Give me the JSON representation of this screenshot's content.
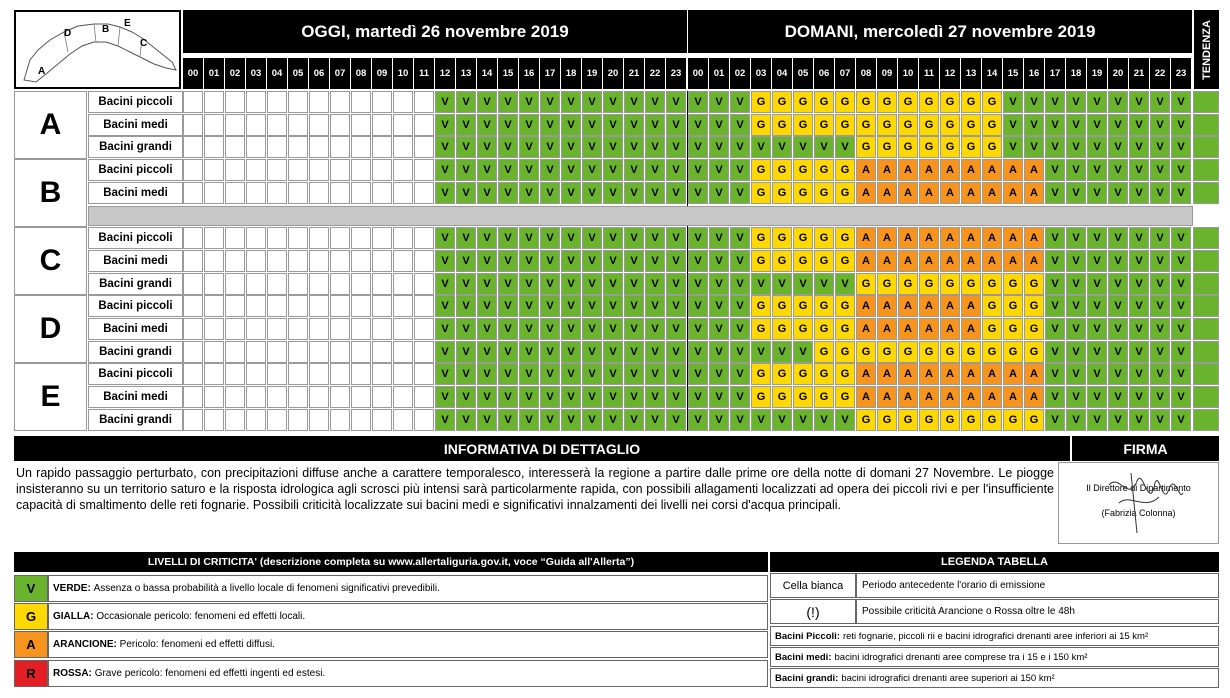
{
  "header": {
    "today": "OGGI, martedì 26 novembre 2019",
    "tomorrow": "DOMANI, mercoledì 27 novembre 2019",
    "trend": "TENDENZA",
    "map_labels": [
      "A",
      "B",
      "C",
      "D",
      "E"
    ]
  },
  "hours": [
    "00",
    "01",
    "02",
    "03",
    "04",
    "05",
    "06",
    "07",
    "08",
    "09",
    "10",
    "11",
    "12",
    "13",
    "14",
    "15",
    "16",
    "17",
    "18",
    "19",
    "20",
    "21",
    "22",
    "23",
    "00",
    "01",
    "02",
    "03",
    "04",
    "05",
    "06",
    "07",
    "08",
    "09",
    "10",
    "11",
    "12",
    "13",
    "14",
    "15",
    "16",
    "17",
    "18",
    "19",
    "20",
    "21",
    "22",
    "23"
  ],
  "zones": [
    {
      "name": "A",
      "rows": [
        {
          "label": "Bacini piccoli",
          "today": "wwwwwwwwwwwwVVVVVVVVVVVV",
          "tomorrow": "VVVGGGGGGGGGGGGVVVVVVVVV"
        },
        {
          "label": "Bacini medi",
          "today": "wwwwwwwwwwwwVVVVVVVVVVVV",
          "tomorrow": "VVVGGGGGGGGGGGGVVVVVVVVV"
        },
        {
          "label": "Bacini grandi",
          "today": "wwwwwwwwwwwwVVVVVVVVVVVV",
          "tomorrow": "VVVVVVVVGGGGGGGVVVVVVVVV"
        }
      ]
    },
    {
      "name": "B",
      "rows": [
        {
          "label": "Bacini piccoli",
          "today": "wwwwwwwwwwwwVVVVVVVVVVVV",
          "tomorrow": "VVVGGGGGAAAAAAAAAVVVVVVV"
        },
        {
          "label": "Bacini medi",
          "today": "wwwwwwwwwwwwVVVVVVVVVVVV",
          "tomorrow": "VVVGGGGGAAAAAAAAAVVVVVVV"
        }
      ]
    },
    {
      "name": "C",
      "rows": [
        {
          "label": "Bacini piccoli",
          "today": "wwwwwwwwwwwwVVVVVVVVVVVV",
          "tomorrow": "VVVGGGGGAAAAAAAAAVVVVVVV"
        },
        {
          "label": "Bacini medi",
          "today": "wwwwwwwwwwwwVVVVVVVVVVVV",
          "tomorrow": "VVVGGGGGAAAAAAAAAVVVVVVV"
        },
        {
          "label": "Bacini grandi",
          "today": "wwwwwwwwwwwwVVVVVVVVVVVV",
          "tomorrow": "VVVVVVVVGGGGGGGGGVVVVVVV"
        }
      ]
    },
    {
      "name": "D",
      "rows": [
        {
          "label": "Bacini piccoli",
          "today": "wwwwwwwwwwwwVVVVVVVVVVVV",
          "tomorrow": "VVVGGGGGAAAAAAGGGVVVVVVV"
        },
        {
          "label": "Bacini medi",
          "today": "wwwwwwwwwwwwVVVVVVVVVVVV",
          "tomorrow": "VVVGGGGGAAAAAAGGGVVVVVVV"
        },
        {
          "label": "Bacini grandi",
          "today": "wwwwwwwwwwwwVVVVVVVVVVVV",
          "tomorrow": "VVVVVVGGGGGGGGGGGVVVVVVV"
        }
      ]
    },
    {
      "name": "E",
      "rows": [
        {
          "label": "Bacini piccoli",
          "today": "wwwwwwwwwwwwVVVVVVVVVVVV",
          "tomorrow": "VVVGGGGGAAAAAAAAAVVVVVVV"
        },
        {
          "label": "Bacini medi",
          "today": "wwwwwwwwwwwwVVVVVVVVVVVV",
          "tomorrow": "VVVGGGGGAAAAAAAAAVVVVVVV"
        },
        {
          "label": "Bacini grandi",
          "today": "wwwwwwwwwwwwVVVVVVVVVVVV",
          "tomorrow": "VVVVVVVVGGGGGGGGGVVVVVVV"
        }
      ]
    }
  ],
  "colors": {
    "V": "#6ab42d",
    "G": "#ffd800",
    "A": "#f7941d",
    "R": "#e31e24"
  },
  "info": {
    "title": "INFORMATIVA DI DETTAGLIO",
    "text": "Un rapido passaggio perturbato, con precipitazioni diffuse anche a carattere temporalesco, interesserà la regione a partire dalle prime ore della notte di domani 27 Novembre. Le piogge insisteranno su un territorio saturo e la risposta idrologica agli scrosci più intensi sarà particolarmente rapida, con possibili allagamenti localizzati ad opera dei piccoli rivi e per l'insufficiente capacità di smaltimento delle reti fognarie. Possibili criticità localizzate sui bacini medi e significativi innalzamenti dei livelli nei corsi d'acqua principali."
  },
  "firma": {
    "title": "FIRMA",
    "line1": "Il Direttore di Dipartimento",
    "line2": "(Fabrizia Colonna)"
  },
  "levels": {
    "title": "LIVELLI DI CRITICITA' (descrizione completa su www.allertaliguria.gov.it, voce “Guida all'Allerta”)",
    "items": [
      {
        "code": "V",
        "name": "VERDE:",
        "desc": "Assenza o bassa probabilità a livello locale di fenomeni significativi prevedibili."
      },
      {
        "code": "G",
        "name": "GIALLA:",
        "desc": "Occasionale pericolo: fenomeni ed effetti locali."
      },
      {
        "code": "A",
        "name": "ARANCIONE:",
        "desc": "Pericolo: fenomeni ed effetti diffusi."
      },
      {
        "code": "R",
        "name": "ROSSA:",
        "desc": "Grave pericolo: fenomeni ed effetti ingenti ed estesi."
      }
    ]
  },
  "legend": {
    "title": "LEGENDA TABELLA",
    "items": [
      {
        "key": "Cella bianca",
        "value": "Periodo antecedente l'orario di emissione"
      },
      {
        "key": "(!)",
        "value": "Possibile criticità Arancione o Rossa oltre le 48h"
      }
    ],
    "basins": [
      {
        "name": "Bacini Piccoli:",
        "desc": "reti fognarie, piccoli rii e bacini idrografici drenanti aree inferiori ai 15 km²"
      },
      {
        "name": "Bacini medi:",
        "desc": "bacini idrografici drenanti aree comprese tra i 15 e i 150 km²"
      },
      {
        "name": "Bacini grandi:",
        "desc": "bacini idrografici drenanti aree superiori ai 150 km²"
      }
    ]
  }
}
